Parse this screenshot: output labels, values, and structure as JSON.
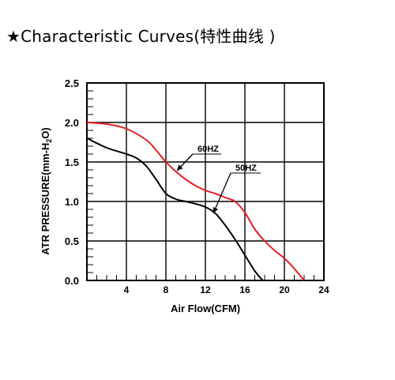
{
  "header": {
    "title_star": "★",
    "title_text": "Characteristic Curves(特性曲线 )"
  },
  "chart_data": {
    "type": "line",
    "title": "",
    "xlabel": "Air Flow(CFM)",
    "ylabel_prefix": "ATR PRESSURE(mm-H",
    "ylabel_sub": "2",
    "ylabel_suffix": "O)",
    "xlim": [
      0,
      24
    ],
    "ylim": [
      0,
      2.5
    ],
    "x_ticks": [
      4,
      8,
      12,
      16,
      20,
      24
    ],
    "x_tick_labels": [
      "4",
      "8",
      "12",
      "16",
      "20",
      "24"
    ],
    "y_ticks": [
      0.0,
      0.5,
      1.0,
      1.5,
      2.0,
      2.5
    ],
    "y_tick_labels": [
      "0.0",
      "0.5",
      "1.0",
      "1.5",
      "2.0",
      "2.5"
    ],
    "grid": true,
    "series": [
      {
        "name": "60HZ",
        "color": "#e31e24",
        "x": [
          0,
          2,
          4,
          6,
          7,
          8,
          9,
          10,
          11,
          12,
          13,
          14,
          15,
          16,
          17,
          18,
          19,
          20,
          21,
          22
        ],
        "y": [
          2.0,
          1.98,
          1.92,
          1.78,
          1.65,
          1.5,
          1.38,
          1.28,
          1.2,
          1.14,
          1.1,
          1.05,
          1.0,
          0.86,
          0.65,
          0.5,
          0.38,
          0.28,
          0.15,
          0.0
        ]
      },
      {
        "name": "50HZ",
        "color": "#000000",
        "x": [
          0,
          2,
          4,
          5,
          6,
          7,
          8,
          9,
          10,
          11,
          12,
          13,
          14,
          15,
          16,
          17,
          17.8
        ],
        "y": [
          1.8,
          1.68,
          1.6,
          1.55,
          1.45,
          1.28,
          1.1,
          1.03,
          1.0,
          0.97,
          0.93,
          0.85,
          0.7,
          0.52,
          0.32,
          0.12,
          0.0
        ]
      }
    ]
  }
}
